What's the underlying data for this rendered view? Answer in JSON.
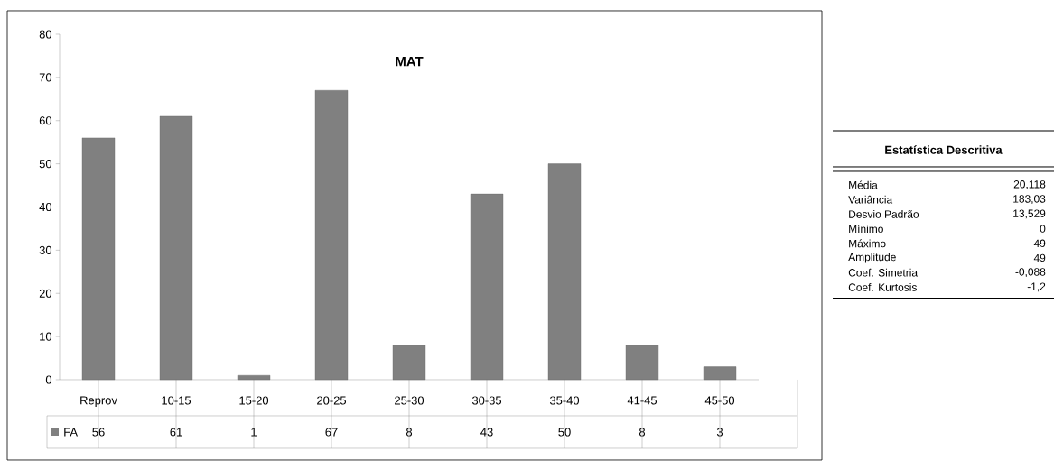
{
  "chart_data": [
    {
      "type": "bar",
      "title": "MAT",
      "categories": [
        "Reprov",
        "10-15",
        "15-20",
        "20-25",
        "25-30",
        "30-35",
        "35-40",
        "41-45",
        "45-50"
      ],
      "series": [
        {
          "name": "FA",
          "color": "#808080",
          "values": [
            56,
            61,
            1,
            67,
            8,
            43,
            50,
            8,
            3
          ]
        }
      ],
      "ylim": [
        0,
        80
      ],
      "yticks": [
        0,
        10,
        20,
        30,
        40,
        50,
        60,
        70,
        80
      ],
      "data_labels": true,
      "legend": "bottom"
    },
    {
      "type": "other",
      "title": "Estatística Descritiva",
      "categories": [
        "Média",
        "Variância",
        "Desvio Padrão",
        "Mínimo",
        "Máximo",
        "Amplitude",
        "Coef. Simetria",
        "Coef. Kurtosis"
      ],
      "value_labels": [
        "20,118",
        "183,03",
        "13,529",
        "0",
        "49",
        "49",
        "-0,088",
        "-1,2"
      ]
    }
  ]
}
